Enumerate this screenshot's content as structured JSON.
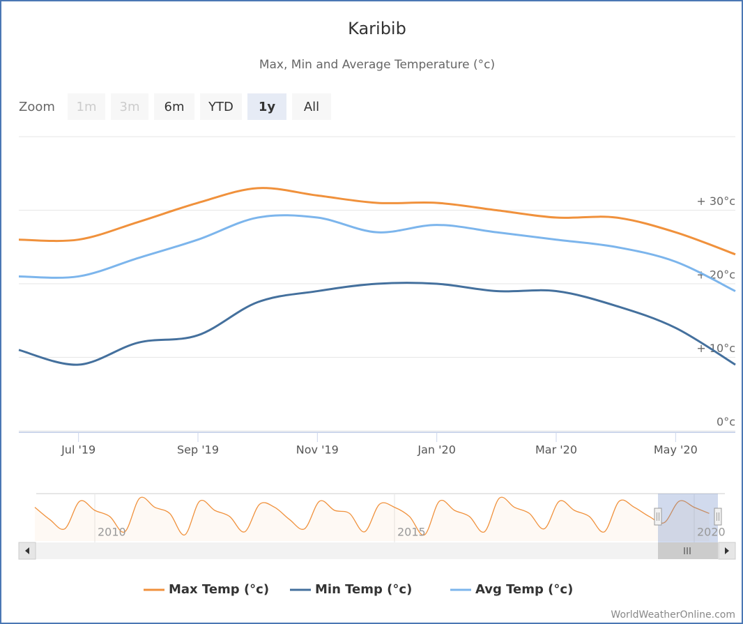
{
  "chart_data": {
    "type": "line",
    "title": "Karibib",
    "subtitle": "Max, Min and Average Temperature (°c)",
    "zoom_label": "Zoom",
    "zoom_buttons": [
      "1m",
      "3m",
      "6m",
      "YTD",
      "1y",
      "All"
    ],
    "selected_zoom": "1y",
    "x": [
      "2019-06",
      "2019-07",
      "2019-08",
      "2019-09",
      "2019-10",
      "2019-11",
      "2019-12",
      "2020-01",
      "2020-02",
      "2020-03",
      "2020-04",
      "2020-05",
      "2020-06"
    ],
    "xlim": [
      "2019-06",
      "2020-06"
    ],
    "xticks": [
      {
        "value": "2019-07",
        "label": "Jul '19"
      },
      {
        "value": "2019-09",
        "label": "Sep '19"
      },
      {
        "value": "2019-11",
        "label": "Nov '19"
      },
      {
        "value": "2020-01",
        "label": "Jan '20"
      },
      {
        "value": "2020-03",
        "label": "Mar '20"
      },
      {
        "value": "2020-05",
        "label": "May '20"
      }
    ],
    "ylim": [
      0,
      40
    ],
    "yticks": [
      {
        "value": 0,
        "label": "0°c"
      },
      {
        "value": 10,
        "label": "+ 10°c"
      },
      {
        "value": 20,
        "label": "+ 20°c"
      },
      {
        "value": 30,
        "label": "+ 30°c"
      }
    ],
    "grid": true,
    "legend": "bottom",
    "series": [
      {
        "name": "Max Temp (°c)",
        "color": "#f0913c",
        "values": [
          26,
          26,
          28.4,
          31,
          33,
          32,
          31,
          31,
          30,
          29,
          29,
          27,
          24
        ]
      },
      {
        "name": "Min Temp (°c)",
        "color": "#44709d",
        "values": [
          11,
          9,
          12,
          13,
          17.5,
          19,
          20,
          20,
          19,
          19,
          17,
          14,
          9
        ]
      },
      {
        "name": "Avg Temp (°c)",
        "color": "#7cb5ec",
        "values": [
          21,
          21,
          23.5,
          26,
          29,
          29,
          27,
          28,
          27,
          26,
          25,
          23,
          19
        ]
      }
    ],
    "navigator": {
      "x": [
        "2009-01",
        "2009-04",
        "2009-07",
        "2009-10",
        "2010-01",
        "2010-04",
        "2010-07",
        "2010-10",
        "2011-01",
        "2011-04",
        "2011-07",
        "2011-10",
        "2012-01",
        "2012-04",
        "2012-07",
        "2012-10",
        "2013-01",
        "2013-04",
        "2013-07",
        "2013-10",
        "2014-01",
        "2014-04",
        "2014-07",
        "2014-10",
        "2015-01",
        "2015-04",
        "2015-07",
        "2015-10",
        "2016-01",
        "2016-04",
        "2016-07",
        "2016-10",
        "2017-01",
        "2017-04",
        "2017-07",
        "2017-10",
        "2018-01",
        "2018-04",
        "2018-07",
        "2018-10",
        "2019-01",
        "2019-04",
        "2019-07",
        "2019-10",
        "2020-01",
        "2020-04"
      ],
      "values": [
        31,
        27,
        24,
        33,
        30,
        28,
        23,
        34,
        31,
        29,
        22,
        33,
        30,
        28,
        23,
        32,
        31,
        27,
        24,
        33,
        30,
        29,
        23,
        32,
        31,
        28,
        22,
        33,
        30,
        28,
        23,
        34,
        31,
        29,
        24,
        33,
        30,
        28,
        23,
        33,
        31,
        28,
        26,
        33,
        31,
        29
      ],
      "color": "#f0913c",
      "xlim": [
        2009,
        2020.5
      ],
      "ylim": [
        20,
        35
      ],
      "xticks": [
        2010,
        2015,
        2020
      ]
    },
    "credit": "WorldWeatherOnline.com"
  }
}
